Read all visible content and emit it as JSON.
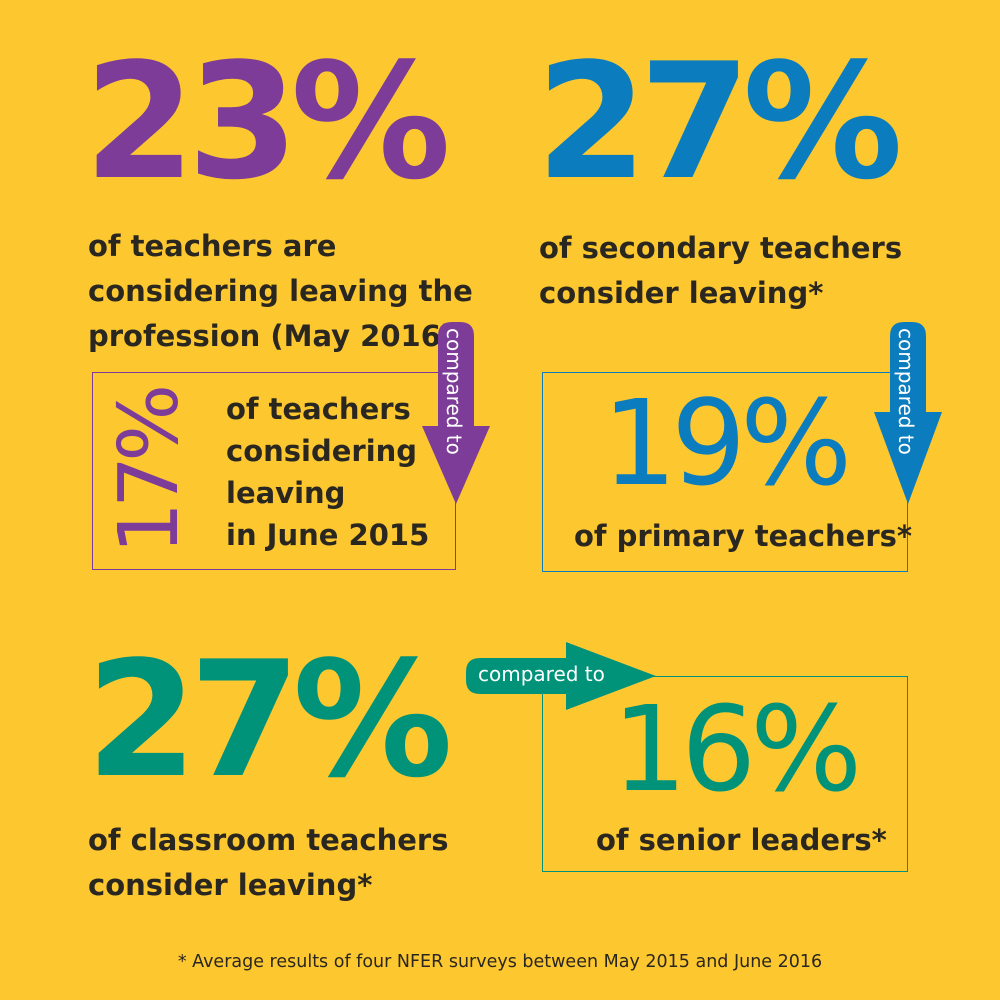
{
  "colors": {
    "background": "#FDC82F",
    "purple": "#7D3C98",
    "blue": "#0B7DBE",
    "green": "#00937A",
    "text": "#2a2620"
  },
  "panel1": {
    "stat": "23%",
    "lines": [
      "of teachers are",
      "considering leaving the",
      "profession (May 2016)"
    ],
    "arrow_label": "compared to",
    "compare_stat": "17%",
    "compare_lines": [
      "of teachers",
      "considering",
      "leaving",
      "in June 2015"
    ]
  },
  "panel2": {
    "stat": "27%",
    "lines": [
      "of secondary teachers",
      "consider leaving*"
    ],
    "arrow_label": "compared to",
    "compare_stat": "19%",
    "compare_text": "of primary teachers*"
  },
  "panel3": {
    "stat": "27%",
    "lines": [
      "of classroom teachers",
      "consider leaving*"
    ],
    "arrow_label": "compared to",
    "compare_stat": "16%",
    "compare_text": "of senior leaders*"
  },
  "footnote": "* Average results of four NFER surveys between May 2015 and June 2016"
}
